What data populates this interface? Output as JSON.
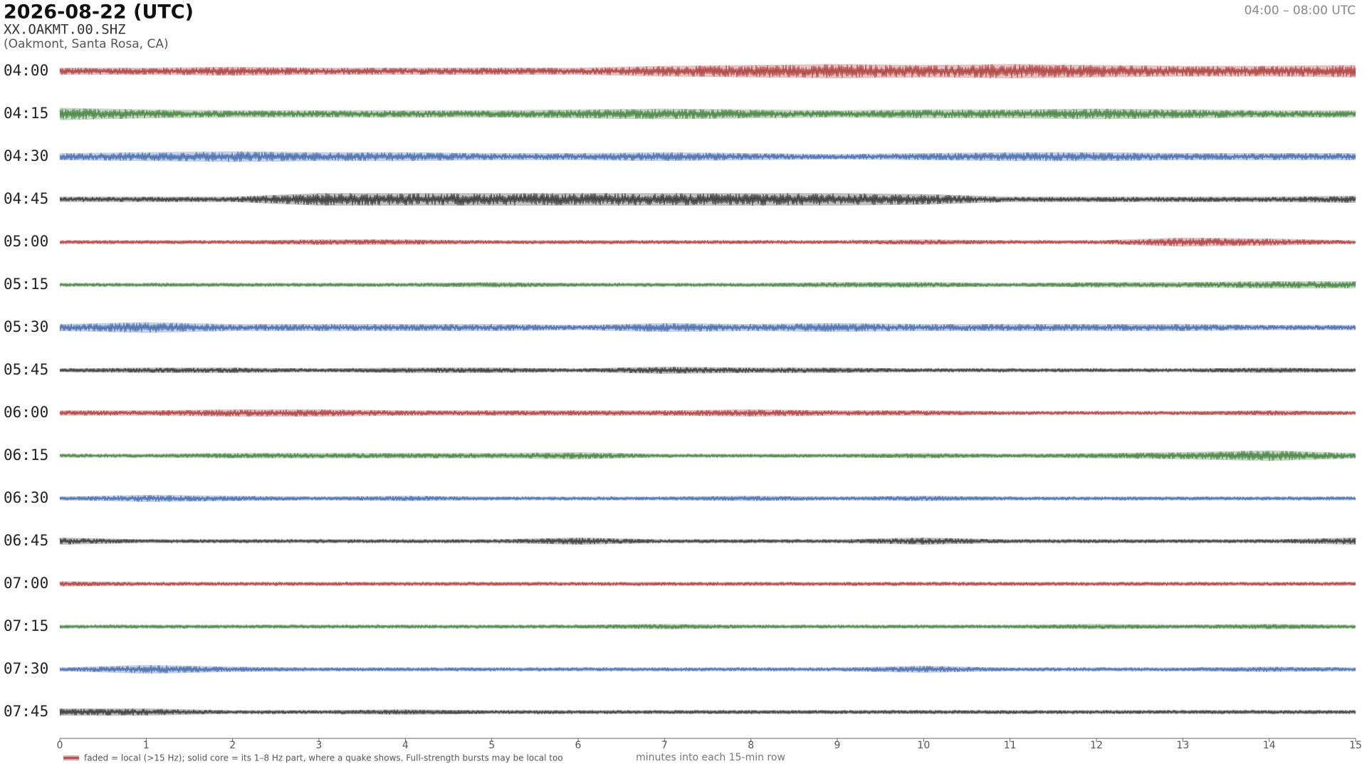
{
  "chart_data": {
    "type": "helicorder",
    "title": "2026-08-22  (UTC)",
    "station": "XX.OAKMT.00.SHZ",
    "location": "(Oakmont, Santa Rosa, CA)",
    "time_range": "04:00 – 08:00 UTC",
    "x_label": "minutes into each 15-min row",
    "legend_note": "faded = local (>15 Hz); solid core = its 1–8 Hz part, where a quake shows. Full-strength bursts may be local too",
    "legend_color": "#a83232",
    "xlim": [
      0,
      15
    ],
    "xticks": [
      0,
      1,
      2,
      3,
      4,
      5,
      6,
      7,
      8,
      9,
      10,
      11,
      12,
      13,
      14,
      15
    ],
    "x": [
      0,
      1,
      2,
      3,
      4,
      5,
      6,
      7,
      8,
      9,
      10,
      11,
      12,
      13,
      14,
      15
    ],
    "series": [
      {
        "name": "04:00",
        "color": "#a83232",
        "values": [
          4,
          4,
          5,
          4,
          4,
          4,
          4,
          6,
          7,
          8,
          7,
          8,
          7,
          6,
          6,
          7
        ]
      },
      {
        "name": "04:15",
        "color": "#3a7a35",
        "values": [
          7,
          5,
          4,
          4,
          4,
          4,
          5,
          6,
          5,
          4,
          5,
          5,
          6,
          5,
          4,
          4
        ]
      },
      {
        "name": "04:30",
        "color": "#3a62a8",
        "values": [
          4,
          5,
          6,
          5,
          5,
          4,
          4,
          5,
          4,
          3,
          4,
          5,
          5,
          4,
          4,
          4
        ]
      },
      {
        "name": "04:45",
        "color": "#2a2a2a",
        "values": [
          3,
          3,
          3,
          7,
          7,
          7,
          7,
          7,
          7,
          7,
          6,
          3,
          3,
          3,
          3,
          4
        ]
      },
      {
        "name": "05:00",
        "color": "#a83232",
        "values": [
          2,
          2,
          2,
          3,
          3,
          2,
          2,
          2,
          2,
          2,
          3,
          2,
          2,
          5,
          4,
          2
        ]
      },
      {
        "name": "05:15",
        "color": "#3a7a35",
        "values": [
          2,
          2,
          2,
          2,
          2,
          3,
          2,
          2,
          2,
          3,
          3,
          2,
          3,
          3,
          4,
          4
        ]
      },
      {
        "name": "05:30",
        "color": "#3a62a8",
        "values": [
          4,
          6,
          4,
          4,
          4,
          4,
          3,
          5,
          4,
          5,
          4,
          4,
          4,
          4,
          3,
          3
        ]
      },
      {
        "name": "05:45",
        "color": "#2a2a2a",
        "values": [
          2,
          3,
          3,
          2,
          3,
          3,
          2,
          4,
          3,
          3,
          2,
          2,
          2,
          2,
          3,
          2
        ]
      },
      {
        "name": "06:00",
        "color": "#a83232",
        "values": [
          3,
          3,
          4,
          4,
          3,
          3,
          3,
          3,
          4,
          3,
          3,
          2,
          2,
          2,
          3,
          2
        ]
      },
      {
        "name": "06:15",
        "color": "#3a7a35",
        "values": [
          2,
          2,
          3,
          3,
          3,
          3,
          4,
          2,
          2,
          2,
          3,
          2,
          3,
          4,
          6,
          3
        ]
      },
      {
        "name": "06:30",
        "color": "#3a62a8",
        "values": [
          2,
          4,
          3,
          2,
          3,
          2,
          2,
          2,
          3,
          2,
          3,
          2,
          2,
          2,
          2,
          2
        ]
      },
      {
        "name": "06:45",
        "color": "#2a2a2a",
        "values": [
          4,
          2,
          2,
          2,
          2,
          2,
          4,
          2,
          2,
          2,
          4,
          2,
          2,
          2,
          2,
          4
        ]
      },
      {
        "name": "07:00",
        "color": "#a83232",
        "values": [
          3,
          2,
          2,
          2,
          2,
          2,
          2,
          2,
          2,
          2,
          2,
          2,
          2,
          2,
          2,
          2
        ]
      },
      {
        "name": "07:15",
        "color": "#3a7a35",
        "values": [
          2,
          2,
          2,
          2,
          2,
          2,
          2,
          3,
          2,
          2,
          2,
          2,
          3,
          2,
          3,
          2
        ]
      },
      {
        "name": "07:30",
        "color": "#3a62a8",
        "values": [
          2,
          5,
          3,
          2,
          2,
          2,
          2,
          2,
          2,
          2,
          4,
          2,
          2,
          2,
          3,
          2
        ]
      },
      {
        "name": "07:45",
        "color": "#2a2a2a",
        "values": [
          4,
          4,
          2,
          2,
          3,
          2,
          2,
          2,
          2,
          2,
          2,
          2,
          2,
          2,
          2,
          2
        ]
      }
    ]
  }
}
